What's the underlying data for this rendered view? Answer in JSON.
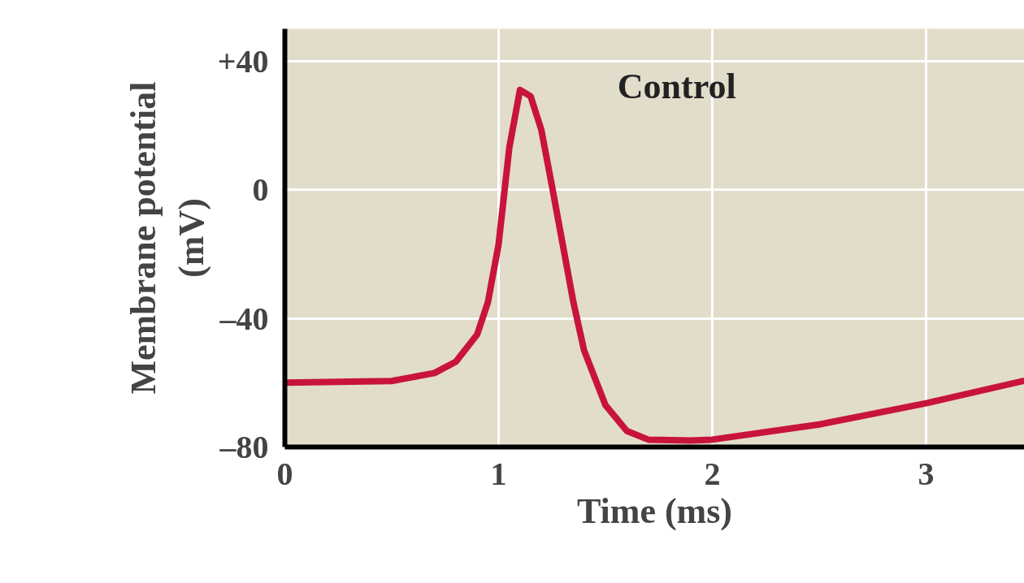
{
  "chart_data": {
    "type": "line",
    "xlabel": "Time (ms)",
    "ylabel": "Membrane potential\n(mV)",
    "x": [
      0,
      0.5,
      0.7,
      0.8,
      0.9,
      0.95,
      1.0,
      1.05,
      1.1,
      1.15,
      1.2,
      1.25,
      1.3,
      1.35,
      1.4,
      1.5,
      1.6,
      1.7,
      1.9,
      2.0,
      2.5,
      3.0,
      3.46
    ],
    "series": [
      {
        "name": "Control",
        "color": "#c8143c",
        "values": [
          -60,
          -59.5,
          -57,
          -53.5,
          -45,
          -35,
          -17,
          13,
          31,
          29,
          18.6,
          1,
          -17,
          -35,
          -50,
          -67,
          -75,
          -77.7,
          -78,
          -77.7,
          -73,
          -66.4,
          -59.4
        ]
      }
    ],
    "xlim": [
      0,
      3.46
    ],
    "ylim": [
      -80,
      50
    ],
    "xticks": [
      0,
      1,
      2,
      3
    ],
    "yticks": [
      {
        "value": 40,
        "label": "+40"
      },
      0,
      {
        "value": -40,
        "label": "–40"
      },
      {
        "value": -80,
        "label": "–80"
      }
    ],
    "grid": true,
    "line_style": "solid"
  }
}
